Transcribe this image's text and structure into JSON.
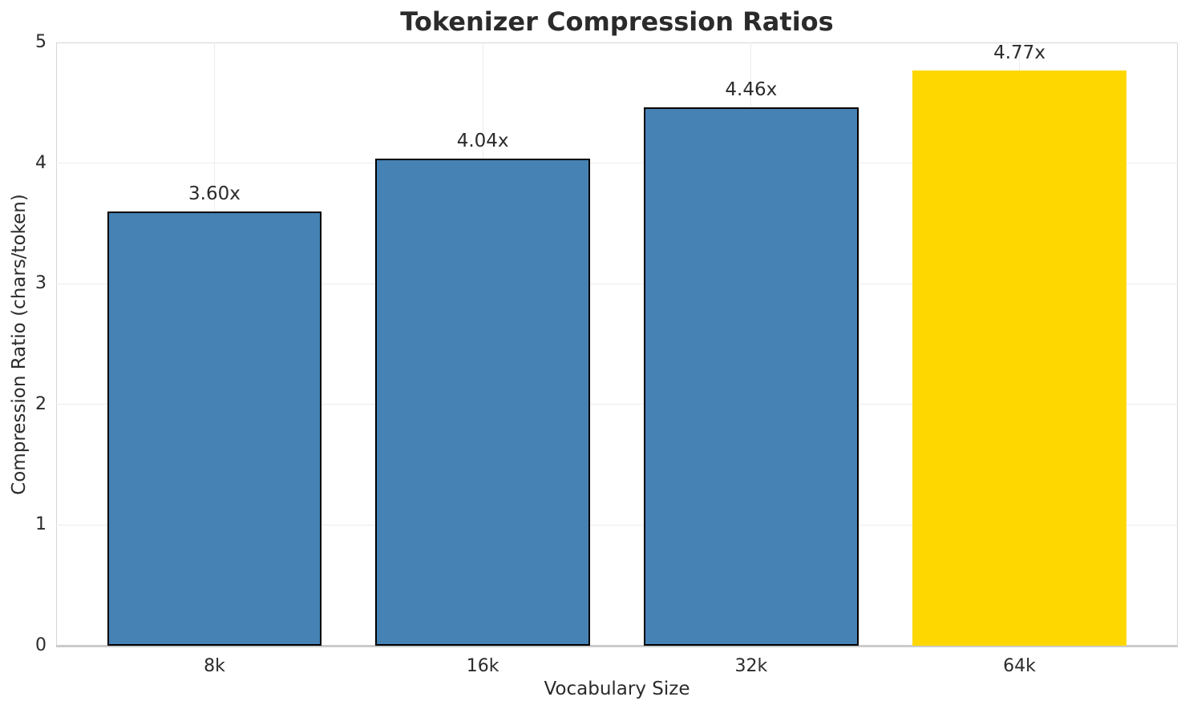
{
  "chart_data": {
    "type": "bar",
    "title": "Tokenizer Compression Ratios",
    "xlabel": "Vocabulary Size",
    "ylabel": "Compression Ratio (chars/token)",
    "categories": [
      "8k",
      "16k",
      "32k",
      "64k"
    ],
    "values": [
      3.6,
      4.04,
      4.46,
      4.77
    ],
    "bar_labels": [
      "3.60x",
      "4.04x",
      "4.46x",
      "4.77x"
    ],
    "bar_colors": [
      "#4682B4",
      "#4682B4",
      "#4682B4",
      "#FFD700"
    ],
    "bar_edge_colors": [
      "#000000",
      "#000000",
      "#000000",
      "none"
    ],
    "highlighted_category": "64k",
    "ylim": [
      0,
      5
    ],
    "yticks": [
      0,
      1,
      2,
      3,
      4,
      5
    ],
    "grid": true,
    "legend_position": "none"
  },
  "colors": {
    "accent_blue": "#4682B4",
    "accent_gold": "#FFD700",
    "text": "#2b2b2b",
    "gridline": "#ececec",
    "spine": "#d6d6d6",
    "axis_line": "#cbcbcb",
    "background": "#ffffff"
  }
}
